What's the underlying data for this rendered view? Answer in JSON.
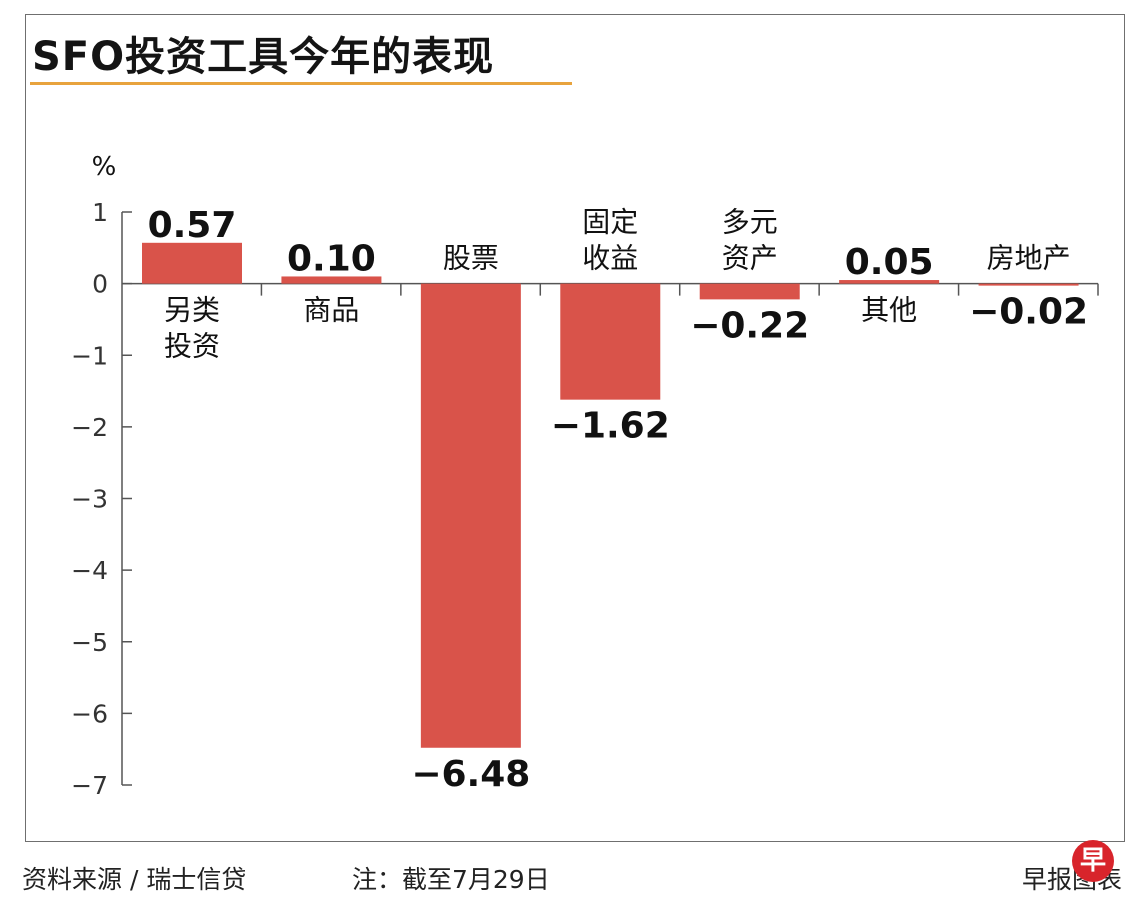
{
  "title": "SFO投资工具今年的表现",
  "colors": {
    "bar": "#d9534a",
    "axis": "#555555",
    "title_rule": "#e8a33d"
  },
  "chart_data": {
    "type": "bar",
    "title": "SFO投资工具今年的表现",
    "ylabel": "%",
    "ylim": [
      -7,
      1
    ],
    "yticks": [
      "1",
      "0",
      "−1",
      "−2",
      "−3",
      "−4",
      "−5",
      "−6",
      "−7"
    ],
    "ytick_values": [
      1,
      0,
      -1,
      -2,
      -3,
      -4,
      -5,
      -6,
      -7
    ],
    "grid": false,
    "categories": [
      [
        "另类",
        "投资"
      ],
      [
        "商品"
      ],
      [
        "股票"
      ],
      [
        "固定",
        "收益"
      ],
      [
        "多元",
        "资产"
      ],
      [
        "其他"
      ],
      [
        "房地产"
      ]
    ],
    "values": [
      0.57,
      0.1,
      -6.48,
      -1.62,
      -0.22,
      0.05,
      -0.02
    ],
    "value_labels": [
      "0.57",
      "0.10",
      "−6.48",
      "−1.62",
      "−0.22",
      "0.05",
      "−0.02"
    ]
  },
  "footer": {
    "source": "资料来源 / 瑞士信贷",
    "note": "注：截至7月29日",
    "credit": "早报图表",
    "logo_text": "早"
  }
}
